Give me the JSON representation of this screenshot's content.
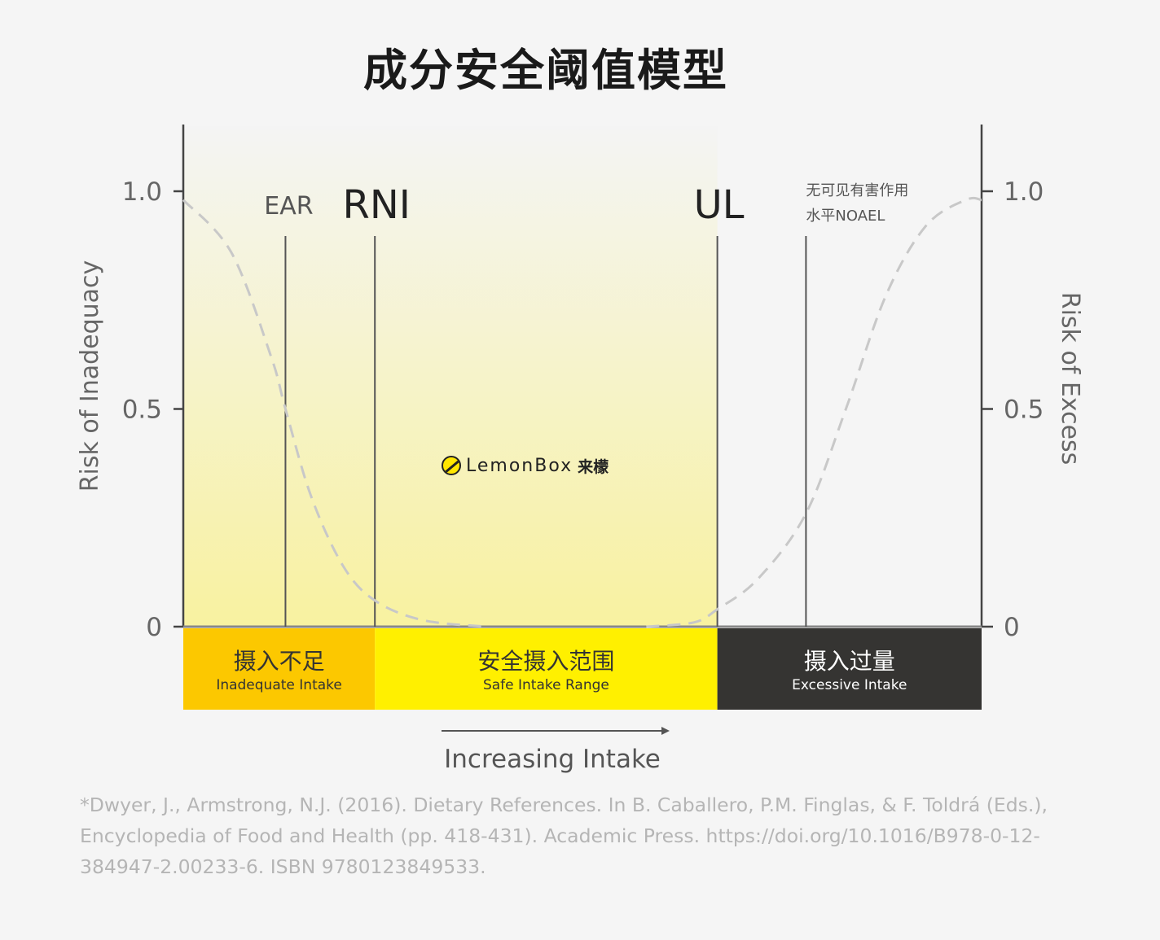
{
  "title": "成分安全阈值模型",
  "citation": "*Dwyer, J., Armstrong, N.J. (2016). Dietary References. In B. Caballero, P.M. Finglas, & F. Toldrá (Eds.), Encyclopedia of Food and Health (pp. 418-431). Academic Press. https://doi.org/10.1016/B978-0-12-384947-2.00233-6. ISBN 9780123849533.",
  "logo": {
    "brand": "LemonBox",
    "brand_cn": "来檬"
  },
  "chart_data": {
    "type": "line",
    "xlabel": "Increasing Intake",
    "ylabel_left": "Risk of Inadequacy",
    "ylabel_right": "Risk of Excess",
    "ylim": [
      0,
      1
    ],
    "yticks_left": [
      "0",
      "0.5",
      "1.0"
    ],
    "yticks_right": [
      "0",
      "0.5",
      "1.0"
    ],
    "thresholds": [
      {
        "label": "EAR",
        "x": 0.128
      },
      {
        "label": "RNI",
        "x": 0.24
      },
      {
        "label": "UL",
        "x": 0.669
      },
      {
        "label_line1": "无可见有害作用",
        "label_line2": "水平NOAEL",
        "x": 0.78
      }
    ],
    "series": [
      {
        "role": "inadequacy",
        "points": [
          [
            0,
            0.98
          ],
          [
            0.06,
            0.86
          ],
          [
            0.11,
            0.62
          ],
          [
            0.128,
            0.5
          ],
          [
            0.16,
            0.3
          ],
          [
            0.2,
            0.14
          ],
          [
            0.24,
            0.06
          ],
          [
            0.3,
            0.015
          ],
          [
            0.38,
            0
          ]
        ]
      },
      {
        "role": "excess",
        "points": [
          [
            0.58,
            0
          ],
          [
            0.64,
            0.01
          ],
          [
            0.669,
            0.04
          ],
          [
            0.72,
            0.11
          ],
          [
            0.78,
            0.26
          ],
          [
            0.83,
            0.5
          ],
          [
            0.88,
            0.76
          ],
          [
            0.93,
            0.92
          ],
          [
            0.98,
            0.98
          ],
          [
            1,
            0.98
          ]
        ]
      }
    ],
    "zones": [
      {
        "cn": "摄入不足",
        "en": "Inadequate Intake",
        "from": 0,
        "to": 0.24,
        "color": "#fcc800",
        "text_color": "#333333"
      },
      {
        "cn": "安全摄入范围",
        "en": "Safe Intake Range",
        "from": 0.24,
        "to": 0.669,
        "color": "#fff000",
        "text_color": "#333333"
      },
      {
        "cn": "摄入过量",
        "en": "Excessive Intake",
        "from": 0.669,
        "to": 1,
        "color": "#353432",
        "text_color": "#ffffff"
      }
    ],
    "colors": {
      "gradient_top": "#f4f4f4",
      "gradient_bottom": "#f8f2a0",
      "curve": "#c8c8c8",
      "axis": "#444444"
    }
  }
}
